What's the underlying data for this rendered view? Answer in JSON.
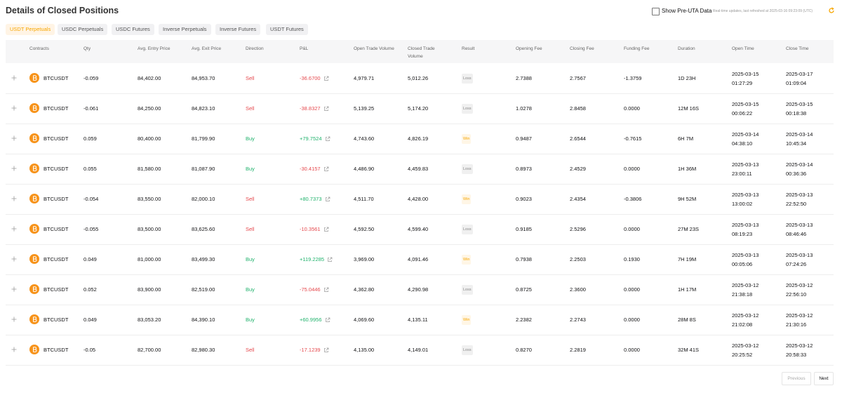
{
  "header": {
    "title": "Details of Closed Positions",
    "checkbox_label": "Show Pre-UTA Data",
    "refresh_note": "Real-time updates, last refreshed at 2025-03-16 09:23:09 (UTC)"
  },
  "tabs": [
    "USDT Perpetuals",
    "USDC Perpetuals",
    "USDC Futures",
    "Inverse Perpetuals",
    "Inverse Futures",
    "USDT Futures"
  ],
  "active_tab": 0,
  "table": {
    "columns": [
      "Contracts",
      "Qty",
      "Avg. Entry Price",
      "Avg. Exit Price",
      "Direction",
      "P&L",
      "Open Trade Volume",
      "Closed Trade Volume",
      "Result",
      "Opening Fee",
      "Closing Fee",
      "Funding Fee",
      "Duration",
      "Open Time",
      "Close Time"
    ],
    "rows": [
      [
        "BTCUSDT",
        "-0.059",
        "84,402.00",
        "84,953.70",
        "Sell",
        "-36.6700",
        "4,979.71",
        "5,012.26",
        "Loss",
        "2.7388",
        "2.7567",
        "-1.3759",
        "1D 23H",
        "2025-03-15 01:27:29",
        "2025-03-17 01:09:04"
      ],
      [
        "BTCUSDT",
        "-0.061",
        "84,250.00",
        "84,823.10",
        "Sell",
        "-38.8327",
        "5,139.25",
        "5,174.20",
        "Loss",
        "1.0278",
        "2.8458",
        "0.0000",
        "12M 16S",
        "2025-03-15 00:06:22",
        "2025-03-15 00:18:38"
      ],
      [
        "BTCUSDT",
        "0.059",
        "80,400.00",
        "81,799.90",
        "Buy",
        "+79.7524",
        "4,743.60",
        "4,826.19",
        "Win",
        "0.9487",
        "2.6544",
        "-0.7615",
        "6H 7M",
        "2025-03-14 04:38:10",
        "2025-03-14 10:45:34"
      ],
      [
        "BTCUSDT",
        "0.055",
        "81,580.00",
        "81,087.90",
        "Buy",
        "-30.4157",
        "4,486.90",
        "4,459.83",
        "Loss",
        "0.8973",
        "2.4529",
        "0.0000",
        "1H 36M",
        "2025-03-13 23:00:11",
        "2025-03-14 00:36:36"
      ],
      [
        "BTCUSDT",
        "-0.054",
        "83,550.00",
        "82,000.10",
        "Sell",
        "+80.7373",
        "4,511.70",
        "4,428.00",
        "Win",
        "0.9023",
        "2.4354",
        "-0.3806",
        "9H 52M",
        "2025-03-13 13:00:02",
        "2025-03-13 22:52:50"
      ],
      [
        "BTCUSDT",
        "-0.055",
        "83,500.00",
        "83,625.60",
        "Sell",
        "-10.3561",
        "4,592.50",
        "4,599.40",
        "Loss",
        "0.9185",
        "2.5296",
        "0.0000",
        "27M 23S",
        "2025-03-13 08:19:23",
        "2025-03-13 08:46:46"
      ],
      [
        "BTCUSDT",
        "0.049",
        "81,000.00",
        "83,499.30",
        "Buy",
        "+119.2285",
        "3,969.00",
        "4,091.46",
        "Win",
        "0.7938",
        "2.2503",
        "0.1930",
        "7H 19M",
        "2025-03-13 00:05:06",
        "2025-03-13 07:24:26"
      ],
      [
        "BTCUSDT",
        "0.052",
        "83,900.00",
        "82,519.00",
        "Buy",
        "-75.0446",
        "4,362.80",
        "4,290.98",
        "Loss",
        "0.8725",
        "2.3600",
        "0.0000",
        "1H 17M",
        "2025-03-12 21:38:18",
        "2025-03-12 22:56:10"
      ],
      [
        "BTCUSDT",
        "0.049",
        "83,053.20",
        "84,390.10",
        "Buy",
        "+60.9956",
        "4,069.60",
        "4,135.11",
        "Win",
        "2.2382",
        "2.2743",
        "0.0000",
        "28M 8S",
        "2025-03-12 21:02:08",
        "2025-03-12 21:30:16"
      ],
      [
        "BTCUSDT",
        "-0.05",
        "82,700.00",
        "82,980.30",
        "Sell",
        "-17.1239",
        "4,135.00",
        "4,149.01",
        "Loss",
        "0.8270",
        "2.2819",
        "0.0000",
        "32M 41S",
        "2025-03-12 20:25:52",
        "2025-03-12 20:58:33"
      ]
    ]
  },
  "pagination": {
    "previous": "Previous",
    "next": "Next"
  }
}
